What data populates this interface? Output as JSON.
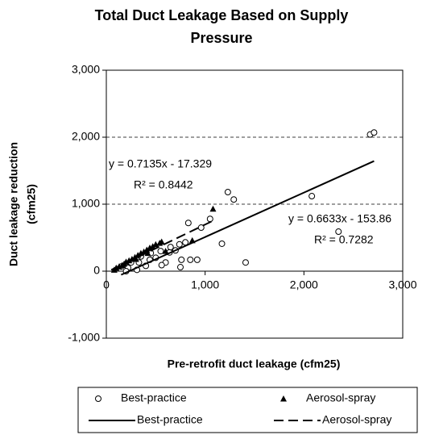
{
  "chart_data": {
    "type": "scatter",
    "title": [
      "Total Duct Leakage Based on Supply",
      "Pressure"
    ],
    "x_label": "Pre-retrofit duct leakage (cfm25)",
    "y_label": [
      "Duct leakage reduction",
      "(cfm25)"
    ],
    "xlim": [
      0,
      3000
    ],
    "ylim": [
      -1000,
      3000
    ],
    "xticks": [
      0,
      {
        "value": 1000,
        "label": "1,000"
      },
      {
        "value": 2000,
        "label": "2,000"
      },
      {
        "value": 3000,
        "label": "3,000"
      }
    ],
    "yticks": [
      {
        "value": -1000,
        "label": "-1,000"
      },
      0,
      {
        "value": 1000,
        "label": "1,000"
      },
      {
        "value": 2000,
        "label": "2,000"
      },
      {
        "value": 3000,
        "label": "3,000"
      }
    ],
    "grid": true,
    "series": [
      {
        "name": "Best-practice",
        "marker": "circle",
        "color": "#000000",
        "x": [
          2670,
          2710,
          2080,
          2350,
          1410,
          1230,
          1290,
          1050,
          960,
          830,
          920,
          850,
          1170,
          760,
          750,
          740,
          640,
          600,
          560,
          500,
          440,
          400,
          330,
          310,
          220,
          200,
          250,
          150,
          350,
          450,
          550,
          650,
          700,
          800
        ],
        "values": [
          2040,
          2070,
          1120,
          590,
          130,
          1180,
          1070,
          780,
          650,
          720,
          170,
          170,
          410,
          170,
          60,
          400,
          280,
          130,
          90,
          200,
          170,
          80,
          130,
          20,
          50,
          0,
          130,
          70,
          220,
          270,
          300,
          360,
          310,
          430
        ]
      },
      {
        "name": "Aerosol-spray",
        "marker": "triangle",
        "color": "#000000",
        "x": [
          80,
          100,
          130,
          160,
          180,
          200,
          230,
          260,
          290,
          320,
          350,
          380,
          410,
          440,
          470,
          500,
          540,
          560,
          600,
          870,
          1080,
          300,
          420
        ],
        "values": [
          20,
          50,
          70,
          90,
          110,
          140,
          160,
          180,
          210,
          240,
          270,
          290,
          320,
          350,
          370,
          400,
          420,
          440,
          300,
          460,
          930,
          180,
          270
        ]
      },
      {
        "name": "Best-practice",
        "marker": "line",
        "dash": "solid",
        "color": "#000000",
        "x": [
          150,
          2710
        ],
        "values": [
          -54,
          1644
        ]
      },
      {
        "name": "Aerosol-spray",
        "marker": "line",
        "dash": "dashed",
        "color": "#000000",
        "x": [
          50,
          1080
        ],
        "values": [
          19,
          753
        ]
      }
    ],
    "annotations": [
      "y = 0.7135x - 17.329",
      "R² = 0.8442",
      "y = 0.6633x - 153.86",
      "R² = 0.7282"
    ]
  }
}
